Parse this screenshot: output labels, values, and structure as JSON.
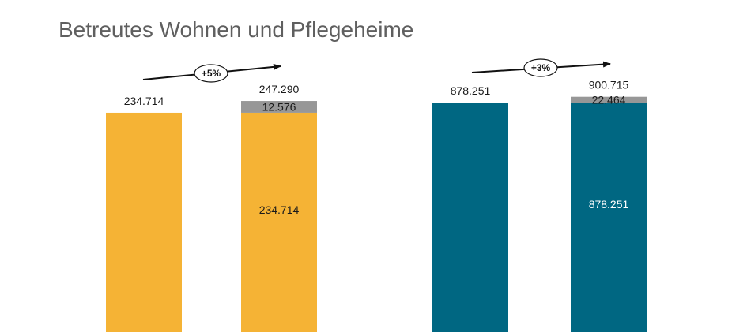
{
  "title": "Betreutes Wohnen und Pflegeheime",
  "chart_data": [
    {
      "type": "bar",
      "stacked": true,
      "categories": [
        "",
        ""
      ],
      "series": [
        {
          "values": [
            234714,
            234714
          ],
          "color": "#f5b335"
        },
        {
          "values": [
            0,
            12576
          ],
          "color": "#979797"
        }
      ],
      "bar_labels": [
        "234.714",
        "247.290"
      ],
      "segment_labels": [
        [
          "",
          ""
        ],
        [
          "234.714",
          "12.576"
        ]
      ],
      "change_label": "+5%",
      "ylim": [
        0,
        260000
      ]
    },
    {
      "type": "bar",
      "stacked": true,
      "categories": [
        "",
        ""
      ],
      "series": [
        {
          "values": [
            878251,
            878251
          ],
          "color": "#006782"
        },
        {
          "values": [
            0,
            22464
          ],
          "color": "#979797"
        }
      ],
      "bar_labels": [
        "878.251",
        "900.715"
      ],
      "segment_labels": [
        [
          "",
          ""
        ],
        [
          "878.251",
          "22.464"
        ]
      ],
      "change_label": "+3%",
      "ylim": [
        0,
        930000
      ]
    }
  ]
}
